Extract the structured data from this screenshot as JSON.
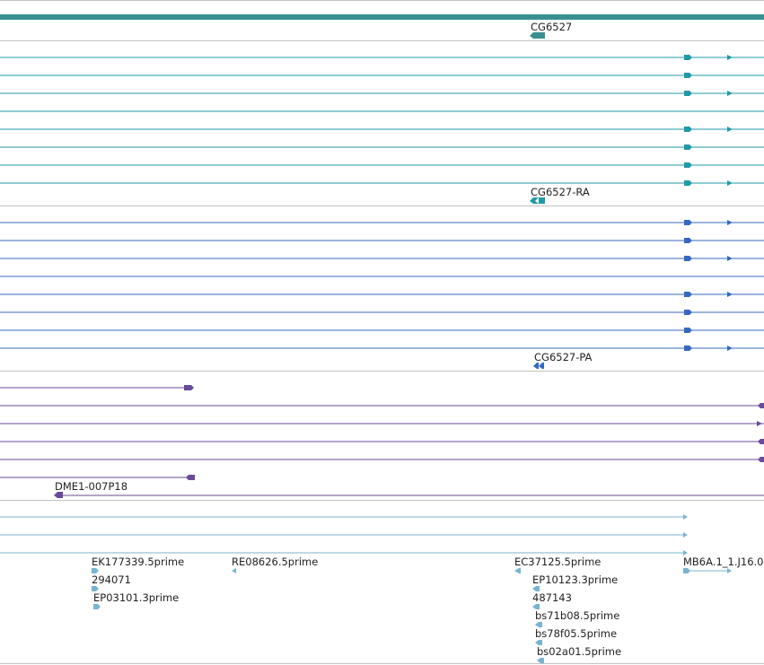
{
  "colors": {
    "gene_track": "#3a9090",
    "transcript_teal": "#1f9aa8",
    "transcript_blue": "#3569c0",
    "clone_purple": "#6a4a9a",
    "est_light": "#78b4d2",
    "separator": "#c2c2c2"
  },
  "gene": {
    "label": "CG6527"
  },
  "transcripts_ra": {
    "label": "CG6527-RA"
  },
  "transcripts_pa": {
    "label": "CG6527-PA"
  },
  "clones": {
    "label": "DME1-007P18"
  },
  "ests": {
    "labels": [
      "EK177339.5prime",
      "294071",
      "EP03101.3prime",
      "RE08626.5prime",
      "EC37125.5prime",
      "EP10123.3prime",
      "487143",
      "bs71b08.5prime",
      "bs78f05.5prime",
      "bs02a01.5prime",
      "MB6A.1_1.J16.0"
    ]
  }
}
